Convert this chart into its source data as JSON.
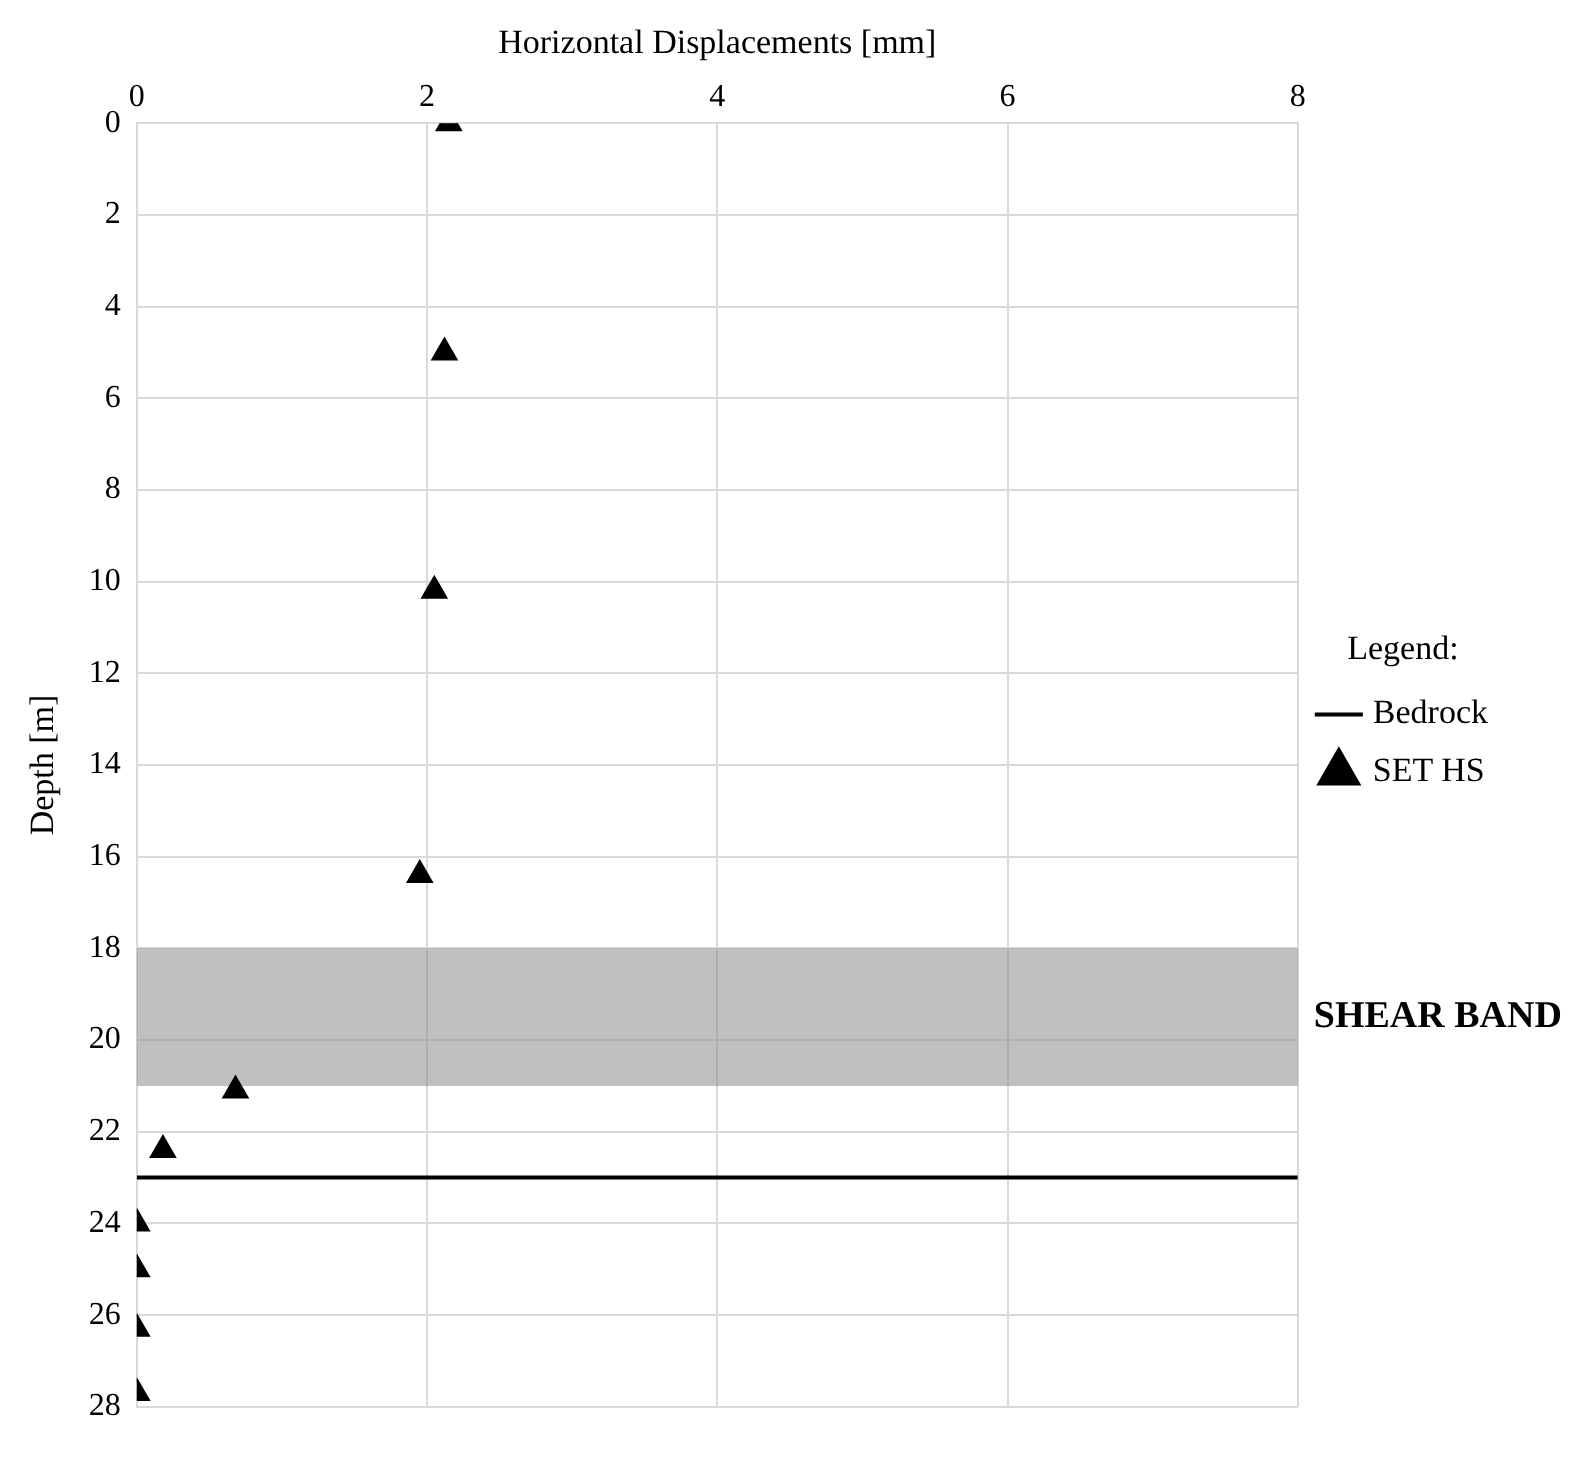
{
  "chart_data": {
    "type": "scatter",
    "xlabel": "Horizontal Displacements [mm]",
    "ylabel": "Depth [m]",
    "legend_title": "Legend:",
    "xlim": [
      0,
      8
    ],
    "xticks": [
      0,
      2,
      4,
      6,
      8
    ],
    "ylim": [
      28,
      0
    ],
    "yticks": [
      0,
      2,
      4,
      6,
      8,
      10,
      12,
      14,
      16,
      18,
      20,
      22,
      24,
      26,
      28
    ],
    "grid": true,
    "legend": "right",
    "marker": "triangle",
    "series": [
      {
        "name": "SET HS",
        "color": "#000000",
        "x": [
          2.15,
          2.12,
          2.05,
          1.95,
          0.68,
          0.18,
          0,
          0,
          0,
          0
        ],
        "values": [
          0,
          5,
          10.2,
          16.4,
          21.1,
          22.4,
          24,
          25,
          26.3,
          27.7
        ]
      }
    ],
    "ref_lines": [
      {
        "axis": "y",
        "value": 23,
        "label": "Bedrock",
        "color": "#000000"
      }
    ],
    "bands": [
      {
        "axis": "y",
        "from": 18,
        "to": 21,
        "label": "SHEAR BAND",
        "color": "#8c8c8c"
      }
    ]
  }
}
